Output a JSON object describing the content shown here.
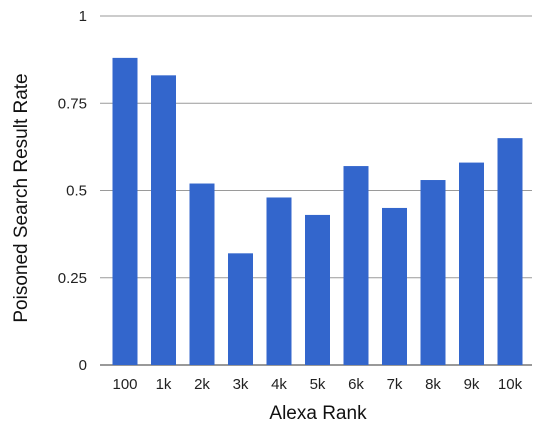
{
  "chart_data": {
    "type": "bar",
    "xlabel": "Alexa Rank",
    "ylabel": "Poisoned Search Result Rate",
    "categories": [
      "100",
      "1k",
      "2k",
      "3k",
      "4k",
      "5k",
      "6k",
      "7k",
      "8k",
      "9k",
      "10k"
    ],
    "values": [
      0.88,
      0.83,
      0.52,
      0.32,
      0.48,
      0.43,
      0.57,
      0.45,
      0.53,
      0.58,
      0.65
    ],
    "ylim": [
      0,
      1
    ],
    "yticks": [
      0,
      0.25,
      0.5,
      0.75,
      1
    ],
    "ytick_labels": [
      "0",
      "0.25",
      "0.5",
      "0.75",
      "1"
    ],
    "grid": true,
    "legend": "none",
    "bar_color": "#3366cc"
  }
}
